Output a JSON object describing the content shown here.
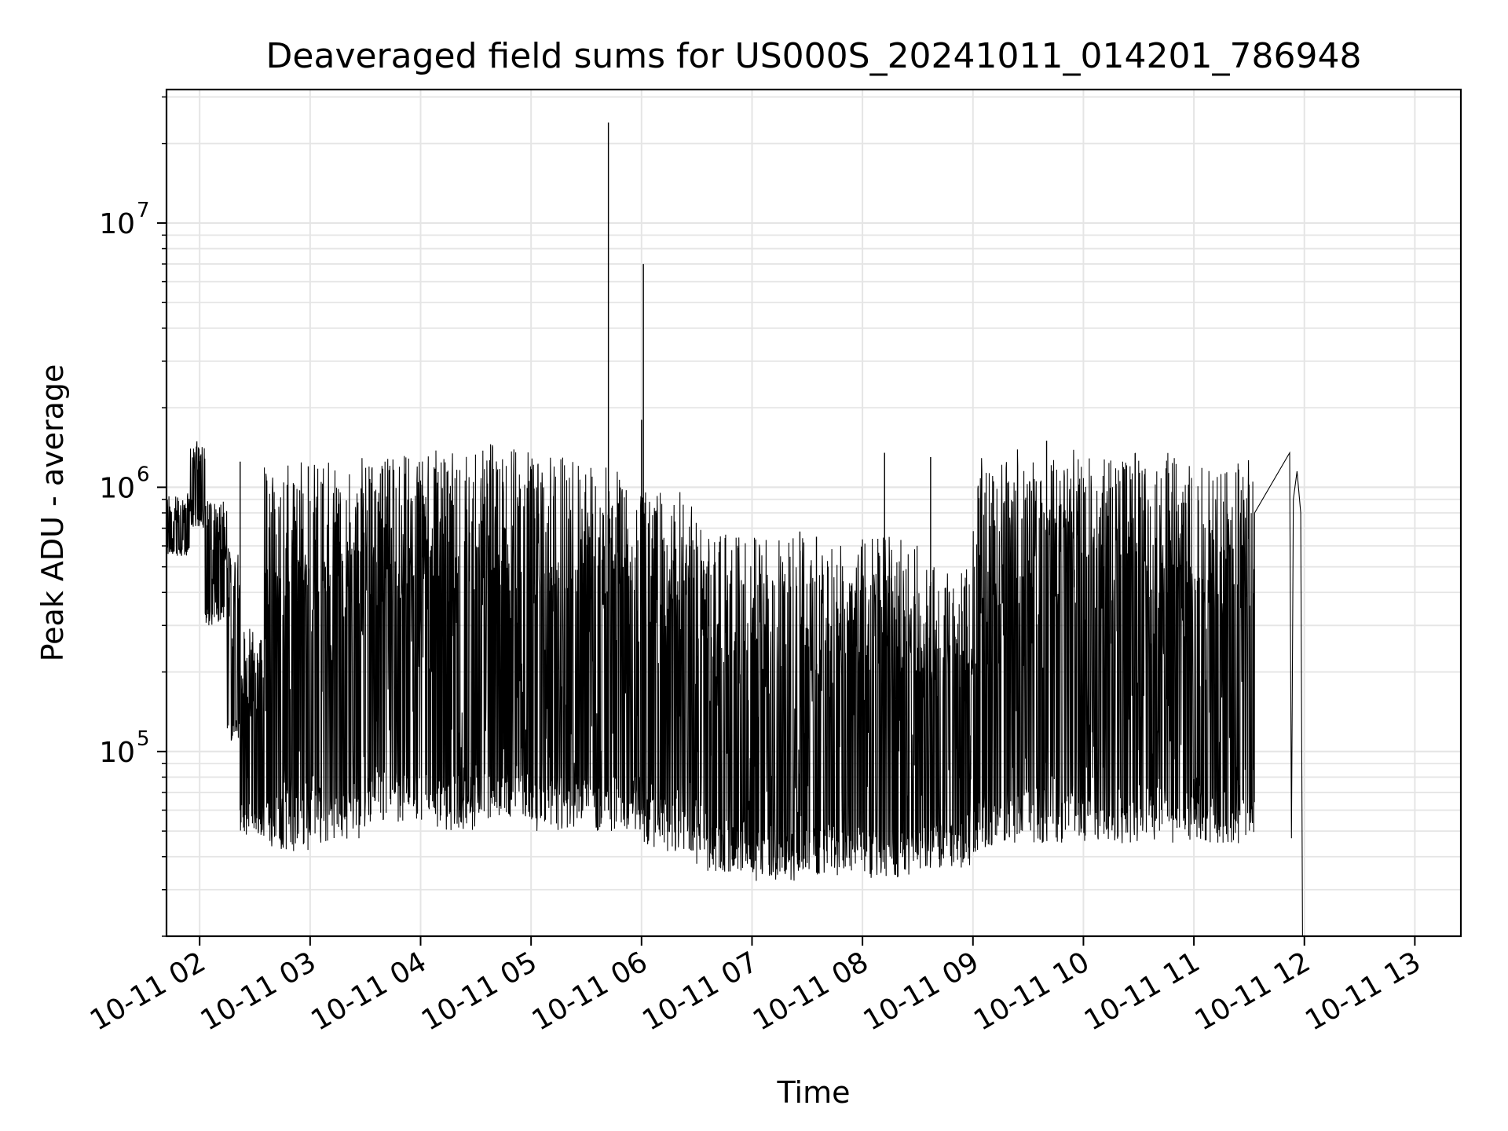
{
  "chart_data": {
    "type": "line",
    "title": "Deaveraged field sums for US000S_20241011_014201_786948",
    "xlabel": "Time",
    "ylabel": "Peak ADU - average",
    "y_scale": "log",
    "grid": "on",
    "line_color": "#000000",
    "grid_color": "#e5e5e5",
    "xlim": [
      "2024-10-11 01:42",
      "2024-10-11 13:25"
    ],
    "ylim": [
      20000,
      32000000
    ],
    "x_tick_labels": [
      "10-11 02",
      "10-11 03",
      "10-11 04",
      "10-11 05",
      "10-11 06",
      "10-11 07",
      "10-11 08",
      "10-11 09",
      "10-11 10",
      "10-11 11",
      "10-11 12",
      "10-11 13"
    ],
    "y_tick_labels": [
      {
        "base": "10",
        "exp": "5",
        "value": 100000
      },
      {
        "base": "10",
        "exp": "6",
        "value": 1000000
      },
      {
        "base": "10",
        "exp": "7",
        "value": 10000000
      }
    ],
    "series": [
      {
        "segments": [
          {
            "start": "2024-10-11 01:42",
            "end": "2024-10-11 01:55",
            "low": 550000,
            "high": 950000
          },
          {
            "start": "2024-10-11 01:55",
            "end": "2024-10-11 02:03",
            "low": 700000,
            "high": 1500000
          },
          {
            "start": "2024-10-11 02:03",
            "end": "2024-10-11 02:15",
            "low": 300000,
            "high": 900000
          },
          {
            "start": "2024-10-11 02:15",
            "end": "2024-10-11 02:22",
            "low": 110000,
            "high": 600000
          },
          {
            "start": "2024-10-11 02:22",
            "end": "2024-10-11 02:35",
            "low": 48000,
            "high": 300000
          },
          {
            "start": "2024-10-11 02:35",
            "end": "2024-10-11 03:00",
            "low": 42000,
            "high": 1250000
          },
          {
            "start": "2024-10-11 03:00",
            "end": "2024-10-11 03:30",
            "low": 45000,
            "high": 1300000
          },
          {
            "start": "2024-10-11 03:30",
            "end": "2024-10-11 04:00",
            "low": 52000,
            "high": 1350000
          },
          {
            "start": "2024-10-11 04:00",
            "end": "2024-10-11 04:30",
            "low": 50000,
            "high": 1400000
          },
          {
            "start": "2024-10-11 04:30",
            "end": "2024-10-11 05:00",
            "low": 55000,
            "high": 1500000
          },
          {
            "start": "2024-10-11 05:00",
            "end": "2024-10-11 05:30",
            "low": 50000,
            "high": 1300000
          },
          {
            "start": "2024-10-11 05:30",
            "end": "2024-10-11 06:00",
            "low": 50000,
            "high": 1200000
          },
          {
            "start": "2024-10-11 06:00",
            "end": "2024-10-11 06:30",
            "low": 42000,
            "high": 1000000
          },
          {
            "start": "2024-10-11 06:30",
            "end": "2024-10-11 07:00",
            "low": 35000,
            "high": 700000
          },
          {
            "start": "2024-10-11 07:00",
            "end": "2024-10-11 07:30",
            "low": 32000,
            "high": 650000
          },
          {
            "start": "2024-10-11 07:30",
            "end": "2024-10-11 08:00",
            "low": 34000,
            "high": 600000
          },
          {
            "start": "2024-10-11 08:00",
            "end": "2024-10-11 08:30",
            "low": 33000,
            "high": 650000
          },
          {
            "start": "2024-10-11 08:30",
            "end": "2024-10-11 09:00",
            "low": 36000,
            "high": 500000
          },
          {
            "start": "2024-10-11 09:00",
            "end": "2024-10-11 09:15",
            "low": 40000,
            "high": 1300000
          },
          {
            "start": "2024-10-11 09:15",
            "end": "2024-10-11 10:00",
            "low": 45000,
            "high": 1400000
          },
          {
            "start": "2024-10-11 10:00",
            "end": "2024-10-11 11:00",
            "low": 45000,
            "high": 1350000
          },
          {
            "start": "2024-10-11 11:00",
            "end": "2024-10-11 11:33",
            "low": 45000,
            "high": 1300000
          }
        ],
        "points": [
          {
            "x": "2024-10-11 05:42",
            "y": 24000000
          },
          {
            "x": "2024-10-11 06:01",
            "y": 7000000
          },
          {
            "x": "2024-10-11 06:00",
            "y": 1800000
          },
          {
            "x": "2024-10-11 02:22",
            "y": 1250000
          },
          {
            "x": "2024-10-11 02:59",
            "y": 1200000
          },
          {
            "x": "2024-10-11 07:26",
            "y": 680000
          },
          {
            "x": "2024-10-11 07:35",
            "y": 650000
          },
          {
            "x": "2024-10-11 08:12",
            "y": 1350000
          },
          {
            "x": "2024-10-11 08:37",
            "y": 1300000
          },
          {
            "x": "2024-10-11 09:40",
            "y": 1500000
          },
          {
            "x": "2024-10-11 11:33",
            "y": 800000
          },
          {
            "x": "2024-10-11 11:52",
            "y": 1350000
          },
          {
            "x": "2024-10-11 11:53",
            "y": 47000
          },
          {
            "x": "2024-10-11 11:54",
            "y": 900000
          },
          {
            "x": "2024-10-11 11:56",
            "y": 1150000
          },
          {
            "x": "2024-10-11 11:58",
            "y": 800000
          },
          {
            "x": "2024-10-11 11:59",
            "y": 20000
          }
        ]
      }
    ]
  }
}
